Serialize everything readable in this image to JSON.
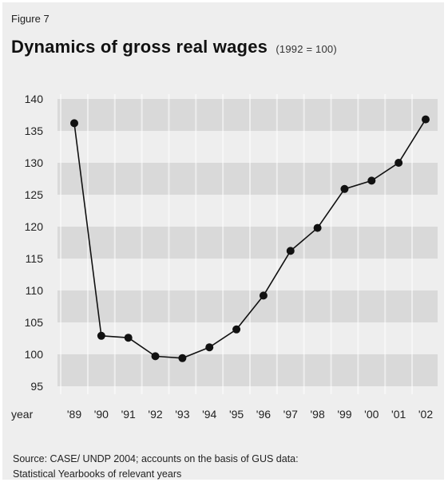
{
  "figure_label": "Figure 7",
  "title": "Dynamics of gross real wages",
  "subtitle": "(1992 = 100)",
  "source_lines": [
    "Source: CASE/ UNDP 2004; accounts on the basis of GUS data:",
    "Statistical Yearbooks of relevant years"
  ],
  "chart_data": {
    "type": "line",
    "title": "Dynamics of gross real wages",
    "subtitle": "(1992 = 100)",
    "xlabel": "year",
    "ylabel": "",
    "categories": [
      "'89",
      "'90",
      "'91",
      "'92",
      "'93",
      "'94",
      "'95",
      "'96",
      "'97",
      "'98",
      "'99",
      "'00",
      "'01",
      "'02"
    ],
    "series": [
      {
        "values": [
          136.2,
          102.9,
          102.6,
          99.7,
          99.4,
          101.1,
          103.9,
          109.2,
          116.2,
          119.8,
          125.9,
          127.2,
          130.0,
          136.8
        ]
      }
    ],
    "ylim": [
      95,
      140
    ],
    "yticks": [
      95,
      100,
      105,
      110,
      115,
      120,
      125,
      130,
      135,
      140
    ],
    "grid": "alternating horizontal bands",
    "legend": "none",
    "colors": {
      "line": "#111111",
      "marker": "#111111",
      "band": "#d9d9d9",
      "background": "#eeeeee"
    }
  }
}
